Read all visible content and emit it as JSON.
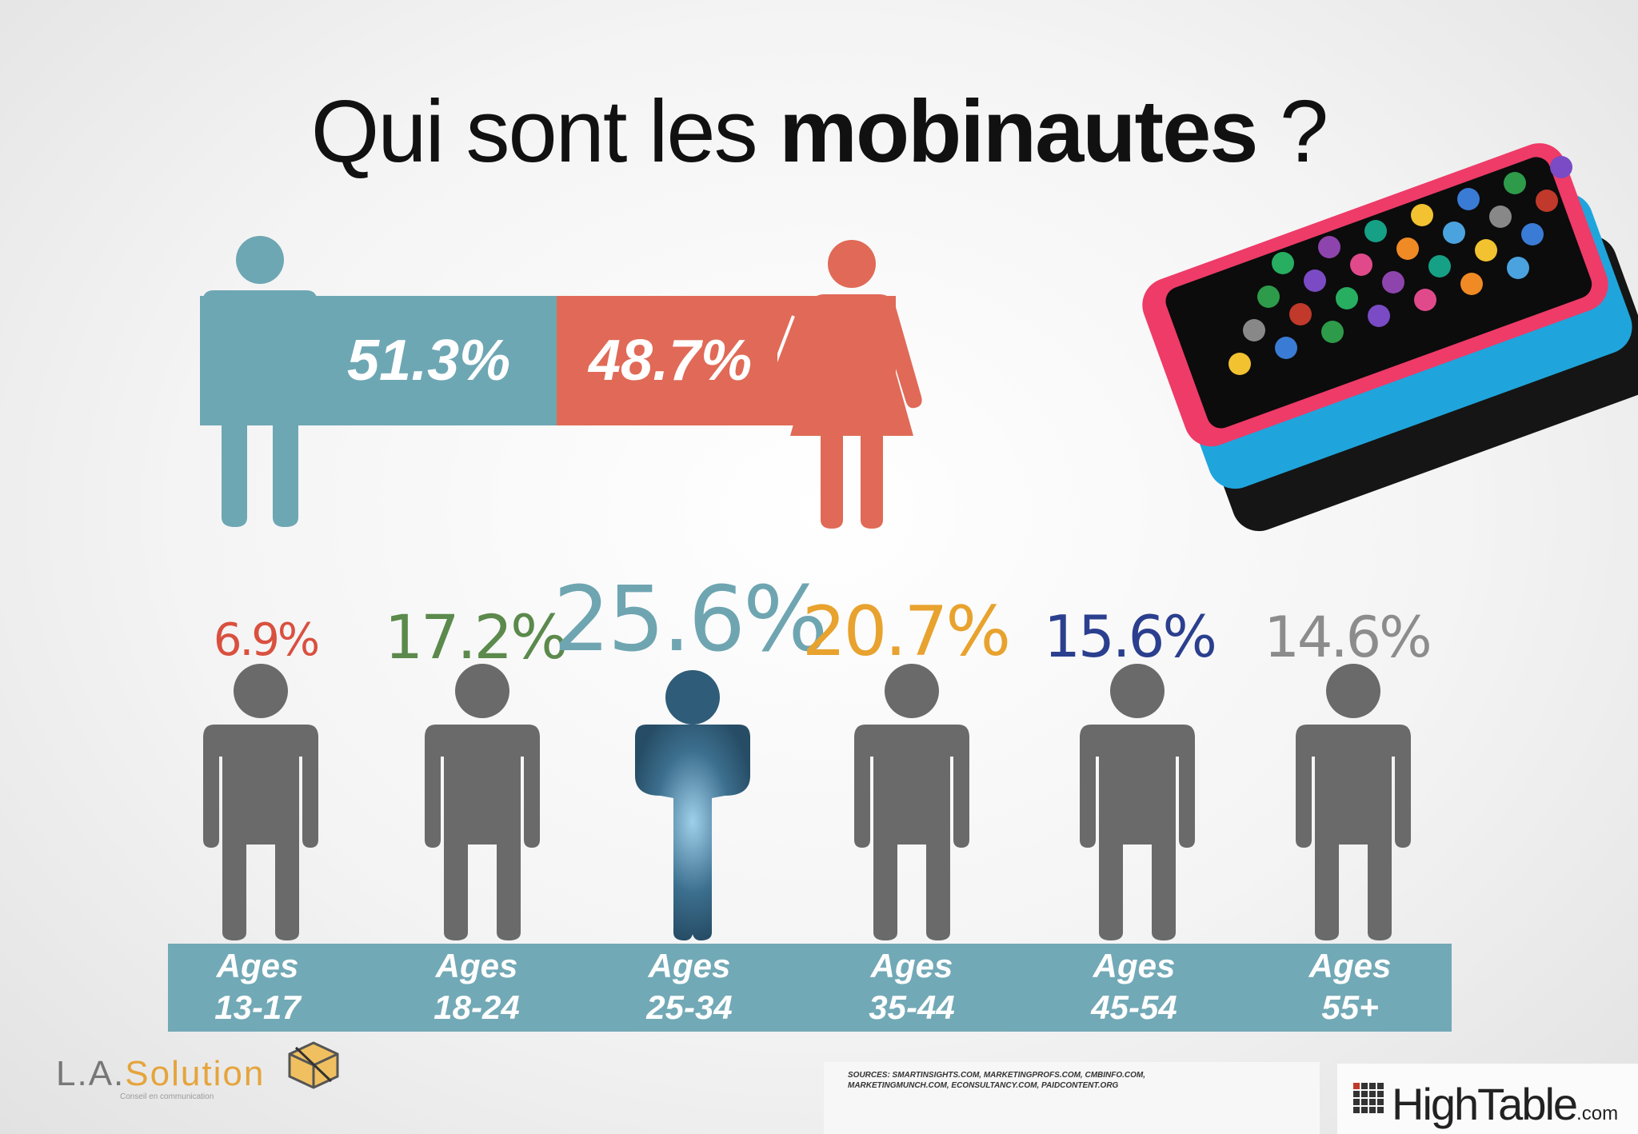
{
  "title": {
    "regular": "Qui sont les ",
    "bold": "mobinautes",
    "end": " ?"
  },
  "gender": {
    "male": {
      "label": "51.3%",
      "value": 51.3,
      "color": "#6ea7b4"
    },
    "female": {
      "label": "48.7%",
      "value": 48.7,
      "color": "#e06a57"
    }
  },
  "ages": [
    {
      "pct": "6.9%",
      "value": 6.9,
      "line1": "Ages",
      "line2": "13-17",
      "color": "#d9503f"
    },
    {
      "pct": "17.2%",
      "value": 17.2,
      "line1": "Ages",
      "line2": "18-24",
      "color": "#5b8a4c"
    },
    {
      "pct": "25.6%",
      "value": 25.6,
      "line1": "Ages",
      "line2": "25-34",
      "color": "#6ea5b1"
    },
    {
      "pct": "20.7%",
      "value": 20.7,
      "line1": "Ages",
      "line2": "35-44",
      "color": "#e8a22e"
    },
    {
      "pct": "15.6%",
      "value": 15.6,
      "line1": "Ages",
      "line2": "45-54",
      "color": "#2b3f8f"
    },
    {
      "pct": "14.6%",
      "value": 14.6,
      "line1": "Ages",
      "line2": "55+",
      "color": "#8c8c8c"
    }
  ],
  "footer": {
    "logo_la": "L.A.",
    "logo_solution": "Solution",
    "logo_tagline": "Conseil en communication",
    "sources_line1": "SOURCES: SMARTINSIGHTS.COM, MARKETINGPROFS.COM, CMBINFO.COM,",
    "sources_line2": "MARKETINGMUNCH.COM, ECONSULTANCY.COM, PAIDCONTENT.ORG",
    "hightable": "HighTable",
    "hightable_com": ".com"
  }
}
